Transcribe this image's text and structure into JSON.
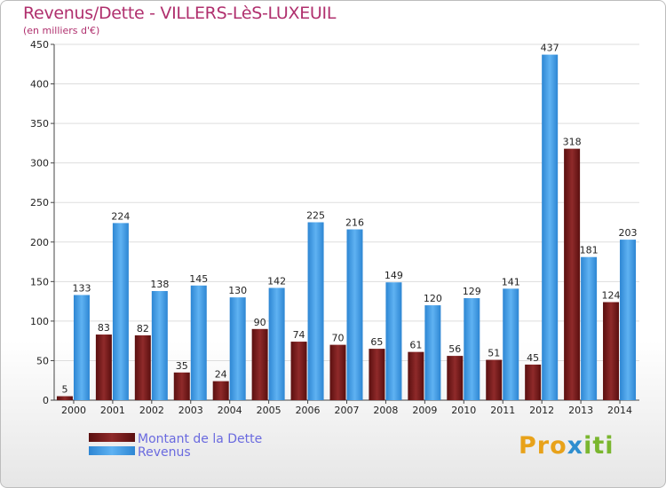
{
  "chart_data": {
    "type": "bar",
    "title": "Revenus/Dette - VILLERS-LèS-LUXEUIL",
    "subtitle": "(en milliers d'€)",
    "categories": [
      "2000",
      "2001",
      "2002",
      "2003",
      "2004",
      "2005",
      "2006",
      "2007",
      "2008",
      "2009",
      "2010",
      "2011",
      "2012",
      "2013",
      "2014"
    ],
    "series": [
      {
        "name": "Montant de la Dette",
        "color": "#7a1e1e",
        "values": [
          5,
          83,
          82,
          35,
          24,
          90,
          74,
          70,
          65,
          61,
          56,
          51,
          45,
          318,
          124
        ]
      },
      {
        "name": "Revenus",
        "color": "#3d9be6",
        "values": [
          133,
          224,
          138,
          145,
          130,
          142,
          225,
          216,
          149,
          120,
          129,
          141,
          437,
          181,
          203
        ]
      }
    ],
    "yticks": [
      0,
      50,
      100,
      150,
      200,
      250,
      300,
      350,
      400,
      450
    ],
    "ylim": [
      0,
      450
    ],
    "grid": true,
    "legend": "bottom-left"
  },
  "logo": {
    "part1": "Pro",
    "part2": "x",
    "part3": "iti"
  }
}
